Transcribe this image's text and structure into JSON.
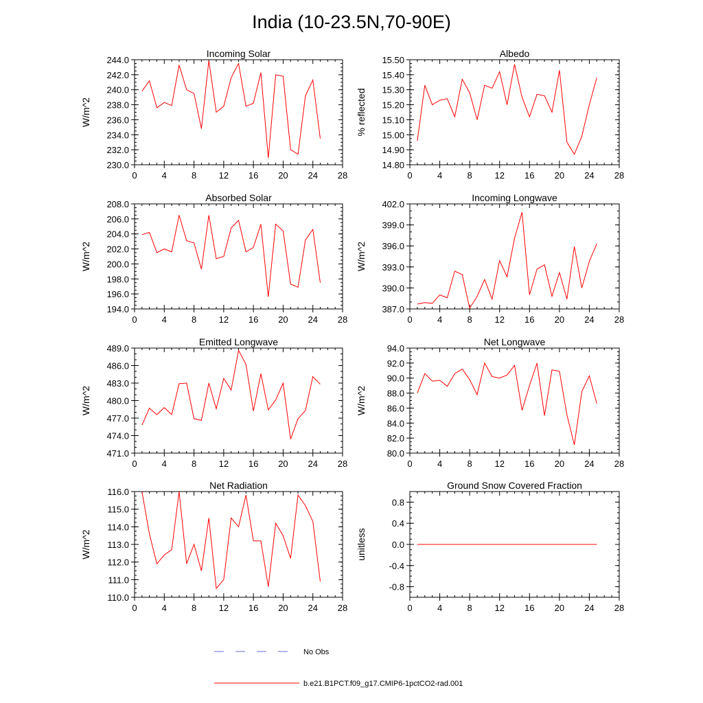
{
  "title": "India (10-23.5N,70-90E)",
  "colors": {
    "model": "#ff0000",
    "obs": "#6a6ae0"
  },
  "legend": {
    "obs_label": "No Obs",
    "model_label": "b.e21.B1PCT.f09_g17.CMIP6-1pctCO2-rad.001"
  },
  "chart_data": [
    {
      "type": "line",
      "title": "Incoming Solar",
      "ylabel": "W/m^2",
      "xlim": [
        0,
        28
      ],
      "xticks": [
        0,
        4,
        8,
        12,
        16,
        20,
        24,
        28
      ],
      "ylim": [
        230,
        244
      ],
      "yticks": [
        230.0,
        232.0,
        234.0,
        236.0,
        238.0,
        240.0,
        242.0,
        244.0
      ],
      "ytick_labels": [
        "230.0",
        "232.0",
        "234.0",
        "236.0",
        "238.0",
        "240.0",
        "242.0",
        "244.0"
      ],
      "ytick_minor": 0.5,
      "x": [
        1,
        2,
        3,
        4,
        5,
        6,
        7,
        8,
        9,
        10,
        11,
        12,
        13,
        14,
        15,
        16,
        17,
        18,
        19,
        20,
        21,
        22,
        23,
        24,
        25
      ],
      "series": [
        {
          "name": "b.e21.B1PCT.f09_g17.CMIP6-1pctCO2-rad.001",
          "values": [
            239.8,
            241.2,
            237.6,
            238.3,
            237.9,
            243.3,
            240.0,
            239.5,
            234.8,
            243.9,
            237.0,
            237.8,
            241.6,
            243.5,
            237.8,
            238.2,
            242.3,
            230.9,
            242.0,
            241.8,
            232.0,
            231.4,
            239.2,
            241.3,
            233.5
          ]
        }
      ]
    },
    {
      "type": "line",
      "title": "Albedo",
      "ylabel": "% reflected",
      "xlim": [
        0,
        28
      ],
      "xticks": [
        0,
        4,
        8,
        12,
        16,
        20,
        24,
        28
      ],
      "ylim": [
        14.8,
        15.5
      ],
      "yticks": [
        14.8,
        14.9,
        15.0,
        15.1,
        15.2,
        15.3,
        15.4,
        15.5
      ],
      "ytick_labels": [
        "14.80",
        "14.90",
        "15.00",
        "15.10",
        "15.20",
        "15.30",
        "15.40",
        "15.50"
      ],
      "ytick_minor": 0.025,
      "x": [
        1,
        2,
        3,
        4,
        5,
        6,
        7,
        8,
        9,
        10,
        11,
        12,
        13,
        14,
        15,
        16,
        17,
        18,
        19,
        20,
        21,
        22,
        23,
        24,
        25
      ],
      "series": [
        {
          "name": "b.e21.B1PCT.f09_g17.CMIP6-1pctCO2-rad.001",
          "values": [
            14.96,
            15.33,
            15.2,
            15.23,
            15.24,
            15.12,
            15.37,
            15.28,
            15.1,
            15.33,
            15.31,
            15.42,
            15.2,
            15.47,
            15.25,
            15.12,
            15.27,
            15.26,
            15.15,
            15.43,
            14.95,
            14.87,
            14.99,
            15.2,
            15.38
          ]
        }
      ]
    },
    {
      "type": "line",
      "title": "Absorbed Solar",
      "ylabel": "W/m^2",
      "xlim": [
        0,
        28
      ],
      "xticks": [
        0,
        4,
        8,
        12,
        16,
        20,
        24,
        28
      ],
      "ylim": [
        194,
        208
      ],
      "yticks": [
        194.0,
        196.0,
        198.0,
        200.0,
        202.0,
        204.0,
        206.0,
        208.0
      ],
      "ytick_labels": [
        "194.0",
        "196.0",
        "198.0",
        "200.0",
        "202.0",
        "204.0",
        "206.0",
        "208.0"
      ],
      "ytick_minor": 0.5,
      "x": [
        1,
        2,
        3,
        4,
        5,
        6,
        7,
        8,
        9,
        10,
        11,
        12,
        13,
        14,
        15,
        16,
        17,
        18,
        19,
        20,
        21,
        22,
        23,
        24,
        25
      ],
      "series": [
        {
          "name": "b.e21.B1PCT.f09_g17.CMIP6-1pctCO2-rad.001",
          "values": [
            203.9,
            204.2,
            201.5,
            202.0,
            201.6,
            206.5,
            203.1,
            202.8,
            199.3,
            206.5,
            200.7,
            201.0,
            204.8,
            205.8,
            201.6,
            202.2,
            205.3,
            195.6,
            205.3,
            204.4,
            197.3,
            196.9,
            203.2,
            204.6,
            197.5
          ]
        }
      ]
    },
    {
      "type": "line",
      "title": "Incoming Longwave",
      "ylabel": "W/m^2",
      "xlim": [
        0,
        28
      ],
      "xticks": [
        0,
        4,
        8,
        12,
        16,
        20,
        24,
        28
      ],
      "ylim": [
        387,
        402
      ],
      "yticks": [
        387.0,
        390.0,
        393.0,
        396.0,
        399.0,
        402.0
      ],
      "ytick_labels": [
        "387.0",
        "390.0",
        "393.0",
        "396.0",
        "399.0",
        "402.0"
      ],
      "ytick_minor": 1.0,
      "x": [
        1,
        2,
        3,
        4,
        5,
        6,
        7,
        8,
        9,
        10,
        11,
        12,
        13,
        14,
        15,
        16,
        17,
        18,
        19,
        20,
        21,
        22,
        23,
        24,
        25
      ],
      "series": [
        {
          "name": "b.e21.B1PCT.f09_g17.CMIP6-1pctCO2-rad.001",
          "values": [
            387.7,
            387.9,
            387.8,
            389.0,
            388.6,
            392.4,
            391.9,
            387.1,
            388.8,
            391.2,
            388.4,
            393.9,
            391.6,
            397.1,
            400.8,
            389.0,
            392.7,
            393.3,
            388.8,
            392.2,
            388.4,
            395.9,
            390.0,
            393.8,
            396.3
          ]
        }
      ]
    },
    {
      "type": "line",
      "title": "Emitted Longwave",
      "ylabel": "W/m^2",
      "xlim": [
        0,
        28
      ],
      "xticks": [
        0,
        4,
        8,
        12,
        16,
        20,
        24,
        28
      ],
      "ylim": [
        471,
        489
      ],
      "yticks": [
        471.0,
        474.0,
        477.0,
        480.0,
        483.0,
        486.0,
        489.0
      ],
      "ytick_labels": [
        "471.0",
        "474.0",
        "477.0",
        "480.0",
        "483.0",
        "486.0",
        "489.0"
      ],
      "ytick_minor": 1.0,
      "x": [
        1,
        2,
        3,
        4,
        5,
        6,
        7,
        8,
        9,
        10,
        11,
        12,
        13,
        14,
        15,
        16,
        17,
        18,
        19,
        20,
        21,
        22,
        23,
        24,
        25
      ],
      "series": [
        {
          "name": "b.e21.B1PCT.f09_g17.CMIP6-1pctCO2-rad.001",
          "values": [
            475.8,
            478.7,
            477.6,
            478.8,
            477.6,
            482.9,
            483.0,
            476.9,
            476.6,
            483.0,
            478.6,
            483.8,
            481.8,
            488.6,
            486.2,
            478.2,
            484.6,
            478.4,
            480.1,
            483.0,
            473.4,
            476.9,
            478.3,
            484.1,
            482.8
          ]
        }
      ]
    },
    {
      "type": "line",
      "title": "Net Longwave",
      "ylabel": "W/m^2",
      "xlim": [
        0,
        28
      ],
      "xticks": [
        0,
        4,
        8,
        12,
        16,
        20,
        24,
        28
      ],
      "ylim": [
        80,
        94
      ],
      "yticks": [
        80.0,
        82.0,
        84.0,
        86.0,
        88.0,
        90.0,
        92.0,
        94.0
      ],
      "ytick_labels": [
        "80.0",
        "82.0",
        "84.0",
        "86.0",
        "88.0",
        "90.0",
        "92.0",
        "94.0"
      ],
      "ytick_minor": 0.5,
      "x": [
        1,
        2,
        3,
        4,
        5,
        6,
        7,
        8,
        9,
        10,
        11,
        12,
        13,
        14,
        15,
        16,
        17,
        18,
        19,
        20,
        21,
        22,
        23,
        24,
        25
      ],
      "series": [
        {
          "name": "b.e21.B1PCT.f09_g17.CMIP6-1pctCO2-rad.001",
          "values": [
            88.0,
            90.6,
            89.6,
            89.7,
            88.9,
            90.6,
            91.2,
            89.8,
            87.8,
            92.0,
            90.2,
            90.0,
            90.4,
            91.7,
            85.7,
            89.0,
            92.0,
            85.0,
            91.1,
            90.9,
            85.1,
            81.1,
            88.2,
            90.3,
            86.6
          ]
        }
      ]
    },
    {
      "type": "line",
      "title": "Net Radiation",
      "ylabel": "W/m^2",
      "xlim": [
        0,
        28
      ],
      "xticks": [
        0,
        4,
        8,
        12,
        16,
        20,
        24,
        28
      ],
      "ylim": [
        110,
        116
      ],
      "yticks": [
        110.0,
        111.0,
        112.0,
        113.0,
        114.0,
        115.0,
        116.0
      ],
      "ytick_labels": [
        "110.0",
        "111.0",
        "112.0",
        "113.0",
        "114.0",
        "115.0",
        "116.0"
      ],
      "ytick_minor": 0.25,
      "x": [
        1,
        2,
        3,
        4,
        5,
        6,
        7,
        8,
        9,
        10,
        11,
        12,
        13,
        14,
        15,
        16,
        17,
        18,
        19,
        20,
        21,
        22,
        23,
        24,
        25
      ],
      "series": [
        {
          "name": "b.e21.B1PCT.f09_g17.CMIP6-1pctCO2-rad.001",
          "values": [
            116.0,
            113.6,
            111.9,
            112.4,
            112.7,
            116.0,
            111.9,
            113.0,
            111.5,
            114.5,
            110.5,
            111.0,
            114.5,
            114.0,
            115.8,
            113.2,
            113.2,
            110.6,
            114.2,
            113.5,
            112.2,
            115.8,
            115.2,
            114.3,
            110.9
          ]
        }
      ]
    },
    {
      "type": "line",
      "title": "Ground Snow Covered Fraction",
      "ylabel": "unitless",
      "xlim": [
        0,
        28
      ],
      "xticks": [
        0,
        4,
        8,
        12,
        16,
        20,
        24,
        28
      ],
      "ylim": [
        -1.0,
        1.0
      ],
      "yticks": [
        -0.8,
        -0.4,
        0.0,
        0.4,
        0.8
      ],
      "ytick_labels": [
        "-0.8",
        "-0.4",
        "0.0",
        "0.4",
        "0.8"
      ],
      "ytick_minor": 0.1,
      "x": [
        1,
        2,
        3,
        4,
        5,
        6,
        7,
        8,
        9,
        10,
        11,
        12,
        13,
        14,
        15,
        16,
        17,
        18,
        19,
        20,
        21,
        22,
        23,
        24,
        25
      ],
      "series": [
        {
          "name": "b.e21.B1PCT.f09_g17.CMIP6-1pctCO2-rad.001",
          "values": [
            0,
            0,
            0,
            0,
            0,
            0,
            0,
            0,
            0,
            0,
            0,
            0,
            0,
            0,
            0,
            0,
            0,
            0,
            0,
            0,
            0,
            0,
            0,
            0,
            0
          ]
        }
      ]
    }
  ]
}
